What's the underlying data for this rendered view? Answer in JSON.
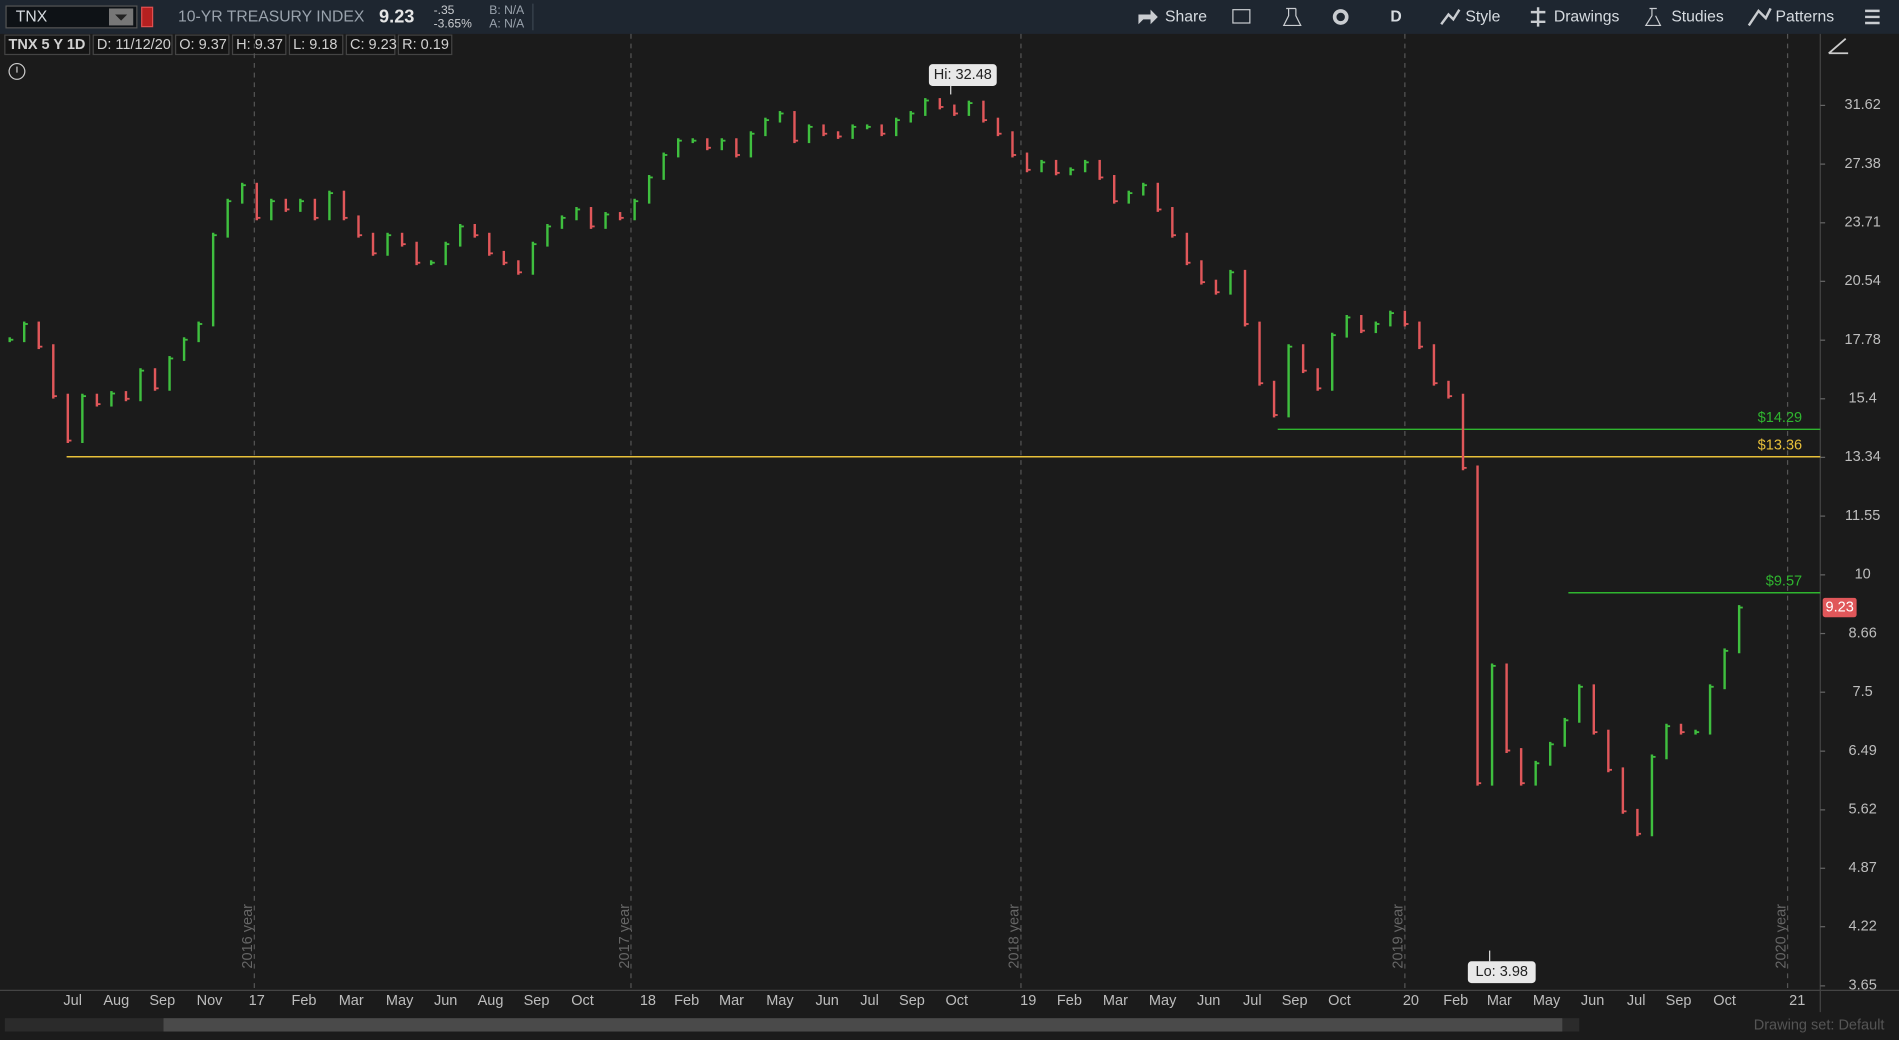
{
  "toolbar": {
    "symbol": "TNX",
    "description": "10-YR TREASURY INDEX",
    "last": "9.23",
    "change": "-.35",
    "change_pct": "-3.65%",
    "bid": "B: N/A",
    "ask": "A: N/A",
    "buttons": [
      "Share",
      "D",
      "Style",
      "Drawings",
      "Studies",
      "Patterns"
    ]
  },
  "info_bar": [
    "TNX 5 Y 1D",
    "D: 11/12/20",
    "O: 9.37",
    "H: 9.37",
    "L: 9.18",
    "C: 9.23",
    "R: 0.19"
  ],
  "footer": {
    "drawing_set": "Drawing set: Default"
  },
  "chart_data": {
    "type": "candlestick",
    "up_color": "#3fbf3f",
    "down_color": "#e0575a",
    "values": [
      17.8,
      18.5,
      17.5,
      15.5,
      13.9,
      15.5,
      15.2,
      15.6,
      15.4,
      16.5,
      15.8,
      17.0,
      17.8,
      18.5,
      23.0,
      25,
      26,
      24,
      25,
      24.5,
      25,
      24,
      25.5,
      24,
      23,
      22,
      23,
      22.5,
      21.5,
      21.5,
      22.5,
      23.5,
      23,
      22,
      21.5,
      21,
      22.5,
      23.5,
      24,
      24.5,
      23.5,
      24.2,
      24,
      25,
      26.5,
      28,
      29,
      29,
      28.5,
      29,
      28,
      29.5,
      30.5,
      31,
      29,
      30,
      29.5,
      29.3,
      30,
      30,
      29.5,
      30.5,
      31,
      32,
      31.5,
      31,
      31.8,
      30.5,
      29.5,
      28,
      27,
      27.5,
      26.8,
      27,
      27.5,
      26.5,
      25,
      25.5,
      26,
      24.5,
      23,
      21.5,
      20.5,
      20,
      21,
      18.5,
      16,
      14.8,
      17.5,
      16.5,
      15.8,
      18,
      18.8,
      18.2,
      18.5,
      19,
      18.5,
      17.5,
      16,
      15.5,
      13,
      6.0,
      8.0,
      6.5,
      6.0,
      6.3,
      6.6,
      7.0,
      7.6,
      6.8,
      6.2,
      5.6,
      5.3,
      6.4,
      6.9,
      6.8,
      6.8,
      7.6,
      8.3,
      9.23
    ],
    "log_scale": true,
    "ylim": [
      3.61,
      37.68
    ],
    "yticks": [
      31.62,
      27.38,
      23.71,
      20.54,
      17.78,
      15.4,
      13.34,
      11.55,
      10,
      8.66,
      7.5,
      6.49,
      5.62,
      4.87,
      4.22,
      3.65
    ],
    "x_labels": [
      "Jul",
      "Aug",
      "Sep",
      "Nov",
      "17",
      "Feb",
      "Mar",
      "May",
      "Jun",
      "Aug",
      "Sep",
      "Oct",
      "18",
      "Feb",
      "Mar",
      "May",
      "Jun",
      "Jul",
      "Sep",
      "Oct",
      "19",
      "Feb",
      "Mar",
      "May",
      "Jun",
      "Jul",
      "Sep",
      "Oct",
      "20",
      "Feb",
      "Mar",
      "May",
      "Jun",
      "Jul",
      "Sep",
      "Oct",
      "21"
    ],
    "year_markers": [
      "2016 year",
      "2017 year",
      "2018 year",
      "2019 year",
      "2020 year"
    ],
    "levels": [
      {
        "value": 14.29,
        "label": "$14.29",
        "color": "#2fb52f"
      },
      {
        "value": 13.36,
        "label": "$13.36",
        "color": "#e8c13a"
      },
      {
        "value": 9.57,
        "label": "$9.57",
        "color": "#2fb52f"
      }
    ],
    "high": {
      "value": 32.48,
      "label": "Hi: 32.48"
    },
    "low": {
      "value": 3.98,
      "label": "Lo: 3.98"
    },
    "last_price": 9.23,
    "last_color": "#e0575a"
  }
}
